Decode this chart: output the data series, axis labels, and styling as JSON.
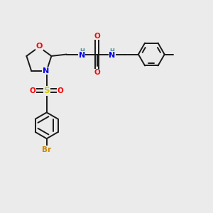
{
  "bg_color": "#ebebeb",
  "bond_color": "#1a1a1a",
  "bond_lw": 1.4,
  "atom_colors": {
    "O": "#ff0000",
    "N": "#0000ee",
    "S": "#cccc00",
    "Br": "#cc8800",
    "H": "#4a9090",
    "C": "#1a1a1a"
  },
  "font_size": 7.5,
  "xlim": [
    0,
    10
  ],
  "ylim": [
    0,
    10
  ]
}
